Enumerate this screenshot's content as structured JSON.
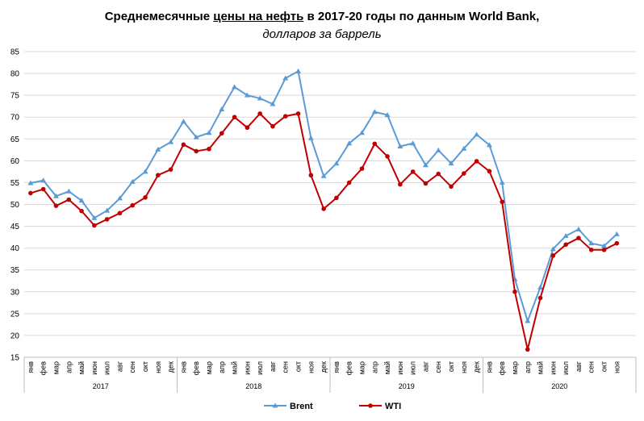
{
  "title": {
    "part1": "Среднемесячные  ",
    "part2_underlined": "цены на нефть",
    "part3": " в 2017-20 годы по данным  World  Bank,",
    "line2": "долларов за баррель"
  },
  "chart_data": {
    "type": "line",
    "ylim": [
      15,
      85
    ],
    "yticks": [
      15,
      20,
      25,
      30,
      35,
      40,
      45,
      50,
      55,
      60,
      65,
      70,
      75,
      80,
      85
    ],
    "grid": "horizontal",
    "legend_position": "bottom",
    "categories": [
      "янв",
      "фев",
      "мар",
      "апр",
      "май",
      "июн",
      "июл",
      "авг",
      "сен",
      "окт",
      "ноя",
      "дек",
      "янв",
      "фев",
      "мар",
      "апр",
      "май",
      "июн",
      "июл",
      "авг",
      "сен",
      "окт",
      "ноя",
      "дек",
      "янв",
      "фев",
      "мар",
      "апр",
      "май",
      "июн",
      "июл",
      "авг",
      "сен",
      "окт",
      "ноя",
      "дек",
      "янв",
      "фев",
      "мар",
      "апр",
      "май",
      "июн",
      "июл",
      "авг",
      "сен",
      "окт",
      "ноя"
    ],
    "years": [
      {
        "label": "2017",
        "months": 12
      },
      {
        "label": "2018",
        "months": 12
      },
      {
        "label": "2019",
        "months": 12
      },
      {
        "label": "2020",
        "months": 11
      }
    ],
    "series": [
      {
        "name": "Brent",
        "color": "#5b9bd5",
        "marker": "triangle",
        "values": [
          54.9,
          55.5,
          51.9,
          53.0,
          50.9,
          46.9,
          48.6,
          51.4,
          55.2,
          57.5,
          62.6,
          64.3,
          69.0,
          65.4,
          66.4,
          71.8,
          76.9,
          75.0,
          74.3,
          73.0,
          78.9,
          80.5,
          65.2,
          56.5,
          59.4,
          64.0,
          66.4,
          71.2,
          70.5,
          63.3,
          64.0,
          59.0,
          62.4,
          59.4,
          62.8,
          66.0,
          63.6,
          55.0,
          32.9,
          23.3,
          31.0,
          39.8,
          42.8,
          44.3,
          41.1,
          40.5,
          43.2
        ]
      },
      {
        "name": "WTI",
        "color": "#c00000",
        "marker": "circle",
        "values": [
          52.6,
          53.5,
          49.7,
          51.1,
          48.5,
          45.2,
          46.6,
          48.0,
          49.8,
          51.6,
          56.7,
          58.0,
          63.7,
          62.2,
          62.7,
          66.3,
          70.0,
          67.6,
          70.8,
          67.9,
          70.2,
          70.8,
          56.7,
          49.0,
          51.5,
          55.0,
          58.2,
          63.9,
          61.0,
          54.6,
          57.5,
          54.8,
          57.0,
          54.1,
          57.1,
          59.9,
          57.6,
          50.6,
          30.0,
          16.8,
          28.6,
          38.3,
          40.8,
          42.3,
          39.6,
          39.6,
          41.1
        ]
      }
    ]
  }
}
